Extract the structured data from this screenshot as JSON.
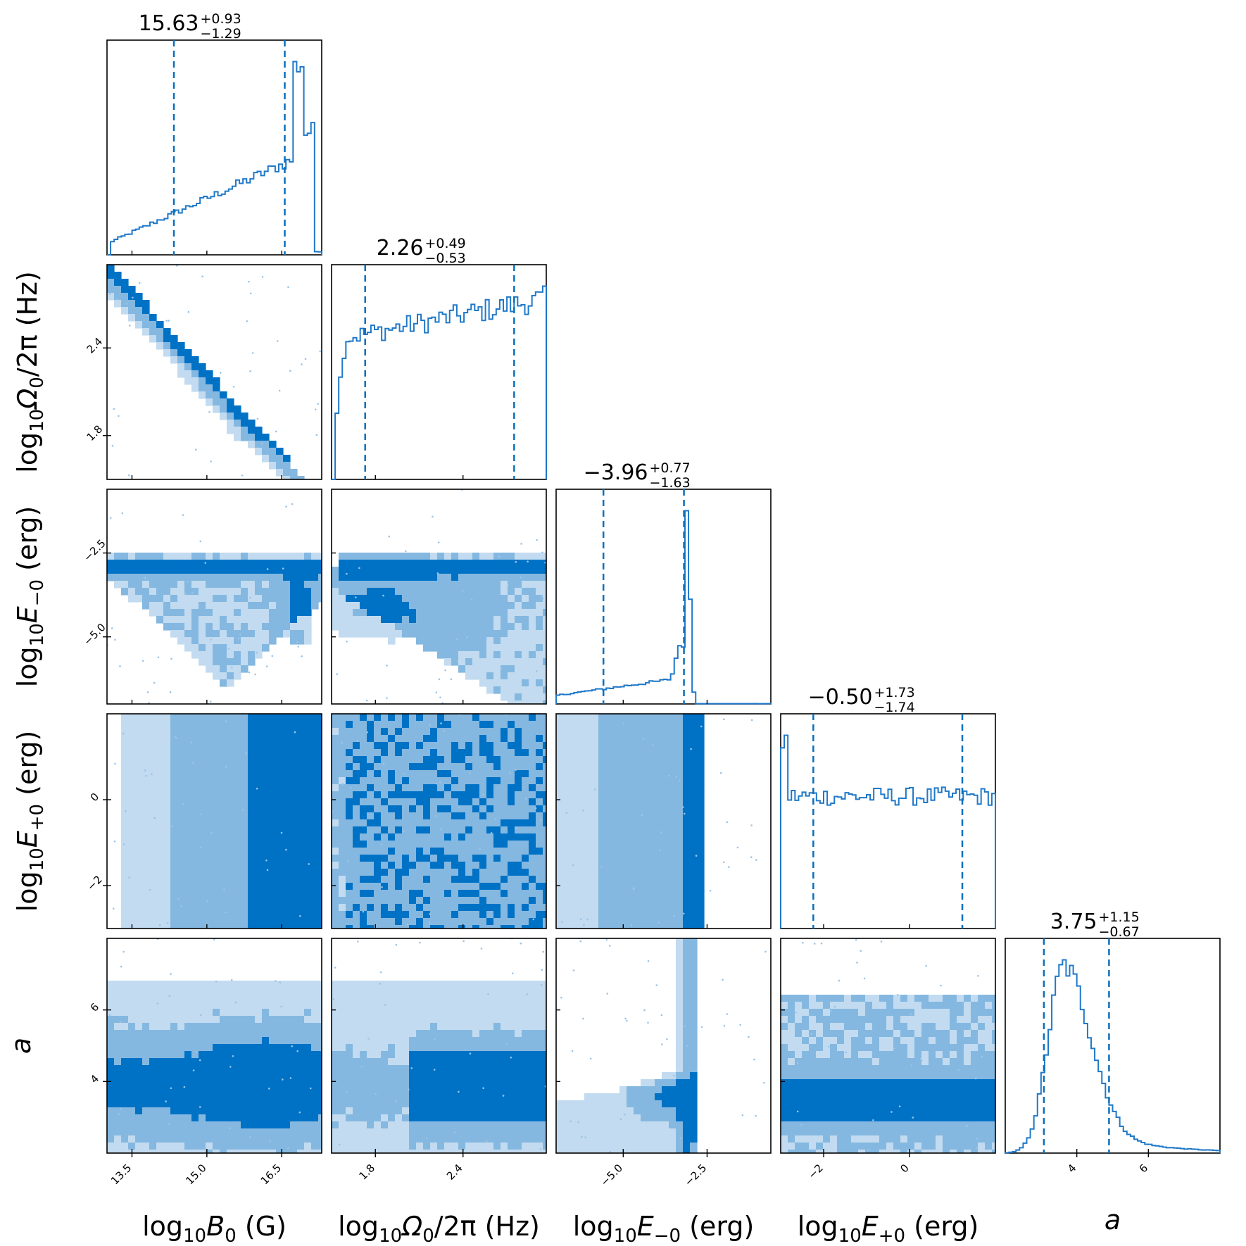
{
  "chart_data": {
    "type": "corner",
    "color": "#0072c6",
    "contour_colors": [
      "#c2dbf0",
      "#84b8e0",
      "#0072c6",
      "#1f78c8"
    ],
    "parameters": [
      {
        "id": "logB0",
        "label": "log10 B0 (G)",
        "label_parts": {
          "pre": "log",
          "sub": "10",
          "main": "B",
          "main_sub": "0",
          "post": " (G)"
        },
        "range": [
          13.0,
          17.3
        ],
        "ticks": [
          13.5,
          15.0,
          16.5
        ],
        "tick_labels": [
          "13.5",
          "15.0",
          "16.5"
        ],
        "median": "15.63",
        "plus": "+0.93",
        "minus": "−1.29",
        "quantiles": [
          14.34,
          16.56
        ],
        "hist_bins": 60
      },
      {
        "id": "logOmega0",
        "label": "log10 Ω0/2π (Hz)",
        "label_parts": {
          "pre": "log",
          "sub": "10",
          "main": "Ω",
          "main_sub": "0",
          "post": "/2π (Hz)"
        },
        "range": [
          1.5,
          2.97
        ],
        "ticks": [
          1.8,
          2.4
        ],
        "tick_labels": [
          "1.8",
          "2.4"
        ],
        "median": "2.26",
        "plus": "+0.49",
        "minus": "−0.53",
        "quantiles": [
          1.73,
          2.75
        ],
        "hist_bins": 60
      },
      {
        "id": "logEminus0",
        "label": "log10 E−0 (erg)",
        "label_parts": {
          "pre": "log",
          "sub": "10",
          "main": "E",
          "main_sub": "−0",
          "post": " (erg)"
        },
        "range": [
          -7.0,
          -0.6
        ],
        "ticks": [
          -5.0,
          -2.5
        ],
        "tick_labels": [
          "−5.0",
          "−2.5"
        ],
        "median": "−3.96",
        "plus": "+0.77",
        "minus": "−1.63",
        "quantiles": [
          -5.59,
          -3.19
        ],
        "hist_bins": 60
      },
      {
        "id": "logEplus0",
        "label": "log10 E+0 (erg)",
        "label_parts": {
          "pre": "log",
          "sub": "10",
          "main": "E",
          "main_sub": "+0",
          "post": " (erg)"
        },
        "range": [
          -3.0,
          2.0
        ],
        "ticks": [
          -2,
          0
        ],
        "tick_labels": [
          "−2",
          "0"
        ],
        "median": "−0.50",
        "plus": "+1.73",
        "minus": "−1.74",
        "quantiles": [
          -2.24,
          1.23
        ],
        "hist_bins": 60
      },
      {
        "id": "a",
        "label": "a",
        "label_parts": {
          "pre": "",
          "sub": "",
          "main": "a",
          "main_sub": "",
          "post": ""
        },
        "range": [
          2.0,
          8.0
        ],
        "ticks": [
          4,
          6
        ],
        "tick_labels": [
          "4",
          "6"
        ],
        "median": "3.75",
        "plus": "+1.15",
        "minus": "−0.67",
        "quantiles": [
          3.08,
          4.9
        ],
        "hist_bins": 60
      }
    ]
  }
}
